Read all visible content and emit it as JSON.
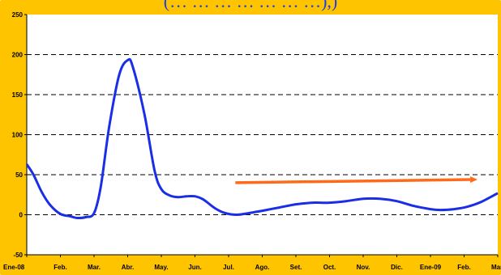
{
  "chart_data": {
    "type": "line",
    "title": "(… … … … … … …),)",
    "xlabel": "",
    "ylabel": "",
    "categories": [
      "Ene-08",
      "Feb.",
      "Mar.",
      "Abr.",
      "May.",
      "Jun.",
      "Jul.",
      "Ago.",
      "Set.",
      "Oct.",
      "Nov.",
      "Dic.",
      "Ene-09",
      "Feb.",
      "Mar."
    ],
    "yticks": [
      -50,
      0,
      50,
      100,
      150,
      200,
      250
    ],
    "ylim": [
      -50,
      250
    ],
    "grid": "dashed horizontal",
    "series": [
      {
        "color": "#1a2ee6",
        "points": [
          [
            0,
            63
          ],
          [
            0.2,
            50
          ],
          [
            0.45,
            28
          ],
          [
            0.7,
            12
          ],
          [
            1.0,
            1
          ],
          [
            1.3,
            -2
          ],
          [
            1.5,
            -4
          ],
          [
            1.75,
            -3
          ],
          [
            2.0,
            2
          ],
          [
            2.2,
            35
          ],
          [
            2.45,
            110
          ],
          [
            2.75,
            175
          ],
          [
            3.0,
            193
          ],
          [
            3.15,
            185
          ],
          [
            3.5,
            125
          ],
          [
            3.8,
            55
          ],
          [
            4.0,
            32
          ],
          [
            4.25,
            24
          ],
          [
            4.5,
            22
          ],
          [
            4.75,
            23
          ],
          [
            5.0,
            23
          ],
          [
            5.25,
            19
          ],
          [
            5.6,
            8
          ],
          [
            5.9,
            2
          ],
          [
            6.25,
            0
          ],
          [
            6.6,
            2
          ],
          [
            7.0,
            5
          ],
          [
            7.5,
            9
          ],
          [
            8.0,
            13
          ],
          [
            8.5,
            15
          ],
          [
            9.0,
            15
          ],
          [
            9.5,
            17
          ],
          [
            10.0,
            20
          ],
          [
            10.5,
            20
          ],
          [
            11.0,
            17
          ],
          [
            11.5,
            11
          ],
          [
            12.0,
            7
          ],
          [
            12.3,
            6
          ],
          [
            12.7,
            7
          ],
          [
            13.1,
            10
          ],
          [
            13.5,
            16
          ],
          [
            14.0,
            27
          ]
        ]
      }
    ],
    "annotations": [
      {
        "type": "arrow",
        "color": "#ff6a1a",
        "from": [
          6.2,
          40
        ],
        "to": [
          13.4,
          44
        ]
      }
    ]
  }
}
